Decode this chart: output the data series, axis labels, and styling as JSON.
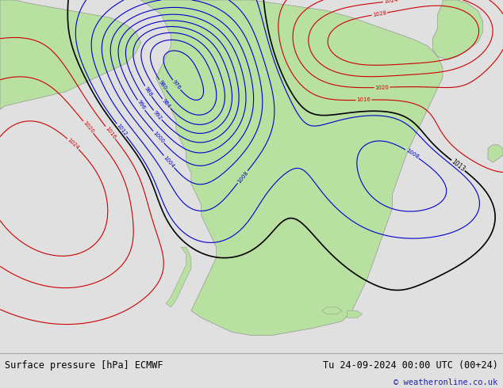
{
  "title_left": "Surface pressure [hPa] ECMWF",
  "title_right": "Tu 24-09-2024 00:00 UTC (00+24)",
  "copyright": "© weatheronline.co.uk",
  "bg_color": "#d8d8d8",
  "land_color": "#b8e0a0",
  "fig_width": 6.34,
  "fig_height": 4.9,
  "footer_bg": "#e0e0e0",
  "blue_color": "#0000cc",
  "red_color": "#cc0000",
  "black_color": "#000000",
  "gray_coast": "#888888"
}
